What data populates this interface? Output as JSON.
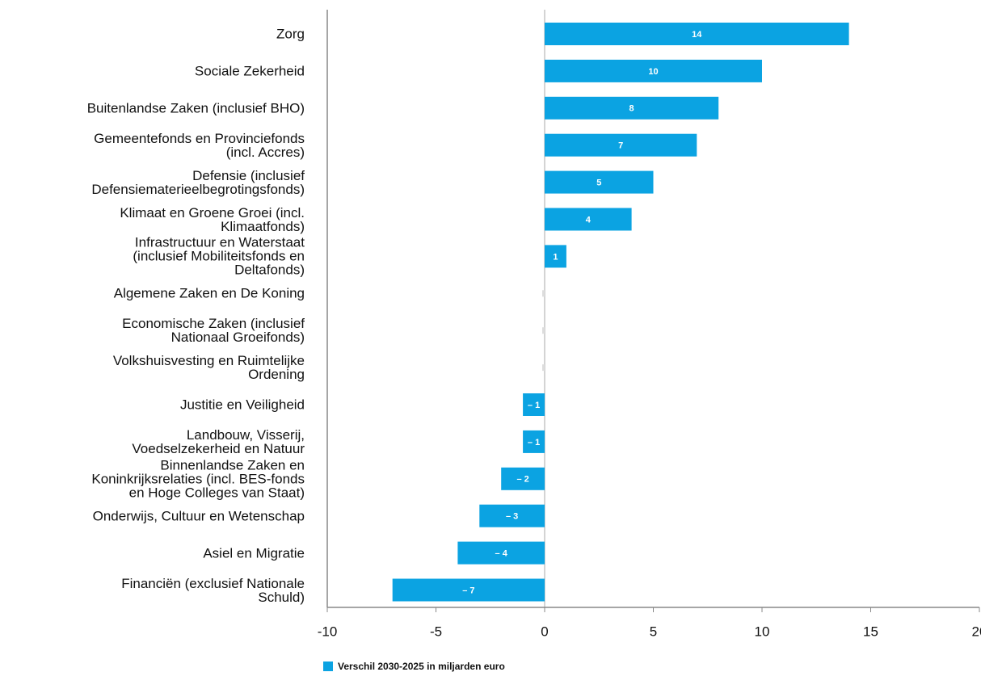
{
  "chart_data": {
    "type": "hbar",
    "categories": [
      "Zorg",
      "Sociale Zekerheid",
      "Buitenlandse Zaken (inclusief BHO)",
      "Gemeentefonds en Provinciefonds\n(incl. Accres)",
      "Defensie (inclusief\nDefensiematerieelbegrotingsfonds)",
      "Klimaat en Groene Groei (incl.\nKlimaatfonds)",
      "Infrastructuur en Waterstaat\n(inclusief Mobiliteitsfonds en\nDeltafonds)",
      "Algemene Zaken en De Koning",
      "Economische Zaken (inclusief\nNationaal Groeifonds)",
      "Volkshuisvesting en Ruimtelijke\nOrdening",
      "Justitie en Veiligheid",
      "Landbouw, Visserij,\nVoedselzekerheid en Natuur",
      "Binnenlandse Zaken en\nKoninkrijksrelaties (incl. BES-fonds\nen Hoge Colleges van Staat)",
      "Onderwijs, Cultuur en Wetenschap",
      "Asiel en Migratie",
      "Financiën (exclusief Nationale\nSchuld)"
    ],
    "series": [
      {
        "name": "Verschil 2030-2025 in miljarden euro",
        "color": "#0ba3e2",
        "values": [
          14,
          10,
          8,
          7,
          5,
          4,
          1,
          0,
          0,
          0,
          -1,
          -1,
          -2,
          -3,
          -4,
          -7
        ],
        "value_labels": [
          "14",
          "10",
          "8",
          "7",
          "5",
          "4",
          "1",
          null,
          null,
          null,
          "– 1",
          "– 1",
          "– 2",
          "– 3",
          "– 4",
          "– 7"
        ]
      }
    ],
    "xlim": [
      -10,
      20
    ],
    "xticks": [
      -10,
      -5,
      0,
      5,
      10,
      15,
      20
    ],
    "legend": "bottom"
  }
}
